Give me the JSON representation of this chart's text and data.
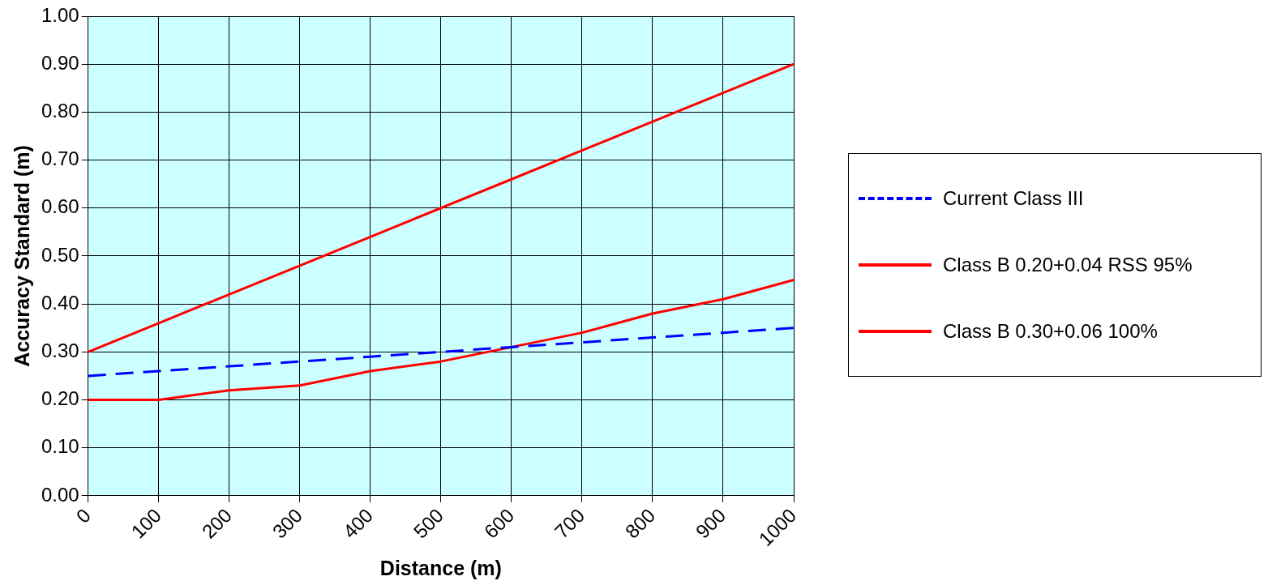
{
  "chart_data": {
    "type": "line",
    "xlabel": "Distance (m)",
    "ylabel": "Accuracy Standard (m)",
    "categories": [
      "0",
      "100",
      "200",
      "300",
      "400",
      "500",
      "600",
      "700",
      "800",
      "900",
      "1000"
    ],
    "ylim": [
      0,
      1
    ],
    "yticks": [
      {
        "value": 0,
        "label": "0.00"
      },
      {
        "value": 0.1,
        "label": "0.10"
      },
      {
        "value": 0.2,
        "label": "0.20"
      },
      {
        "value": 0.3,
        "label": "0.30"
      },
      {
        "value": 0.4,
        "label": "0.40"
      },
      {
        "value": 0.5,
        "label": "0.50"
      },
      {
        "value": 0.6,
        "label": "0.60"
      },
      {
        "value": 0.7,
        "label": "0.70"
      },
      {
        "value": 0.8,
        "label": "0.80"
      },
      {
        "value": 0.9,
        "label": "0.90"
      },
      {
        "value": 1,
        "label": "1.00"
      }
    ],
    "grid": true,
    "legend": "right",
    "marker": "none",
    "series": [
      {
        "name": "Current Class III",
        "color": "#0000ff",
        "line_style": "dashed",
        "values": [
          0.25,
          0.26,
          0.27,
          0.28,
          0.29,
          0.3,
          0.31,
          0.32,
          0.33,
          0.34,
          0.35
        ]
      },
      {
        "name": "Class B 0.20+0.04 RSS 95%",
        "color": "#ff0000",
        "line_style": "solid",
        "values": [
          0.2,
          0.2,
          0.22,
          0.23,
          0.26,
          0.28,
          0.31,
          0.34,
          0.38,
          0.41,
          0.45
        ]
      },
      {
        "name": "Class B 0.30+0.06 100%",
        "color": "#ff0000",
        "line_style": "solid",
        "values": [
          0.3,
          0.36,
          0.42,
          0.48,
          0.54,
          0.6,
          0.66,
          0.72,
          0.78,
          0.84,
          0.9
        ]
      }
    ]
  }
}
